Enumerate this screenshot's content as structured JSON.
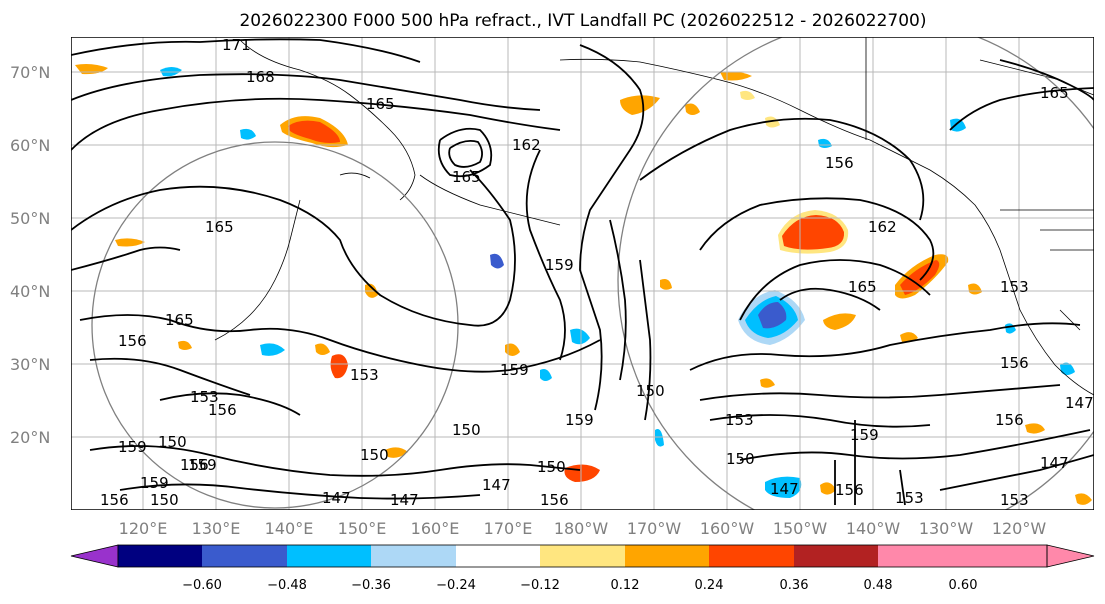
{
  "title": "2026022300 F000 500 hPa refract., IVT Landfall PC (2026022512 - 2026022700)",
  "lat_labels": [
    "70°N",
    "60°N",
    "50°N",
    "40°N",
    "30°N",
    "20°N"
  ],
  "lon_labels": [
    "120°E",
    "130°E",
    "140°E",
    "150°E",
    "160°E",
    "170°E",
    "180°W",
    "170°W",
    "160°W",
    "150°W",
    "140°W",
    "130°W",
    "120°W"
  ],
  "contour_labels": [
    "171",
    "168",
    "165",
    "165",
    "165",
    "165",
    "162",
    "165",
    "162",
    "156",
    "159",
    "159",
    "165",
    "153",
    "156",
    "156",
    "153",
    "153",
    "153",
    "159",
    "156",
    "156",
    "150",
    "150",
    "150",
    "150",
    "159",
    "150",
    "156",
    "150",
    "147",
    "147",
    "147",
    "147",
    "147",
    "153",
    "156",
    "159",
    "156",
    "147",
    "159",
    "159",
    "150",
    "153",
    "156"
  ],
  "colorbar": {
    "ticks": [
      "−0.60",
      "−0.48",
      "−0.36",
      "−0.24",
      "−0.12",
      "0.12",
      "0.24",
      "0.36",
      "0.48",
      "0.60"
    ],
    "colors": [
      "#9932cc",
      "#000080",
      "#3a5bcd",
      "#00bfff",
      "#add8f6",
      "#ffffff",
      "#ffe680",
      "#ffa500",
      "#ff4500",
      "#b22222",
      "#ff88aa",
      "#ff88aa"
    ]
  }
}
